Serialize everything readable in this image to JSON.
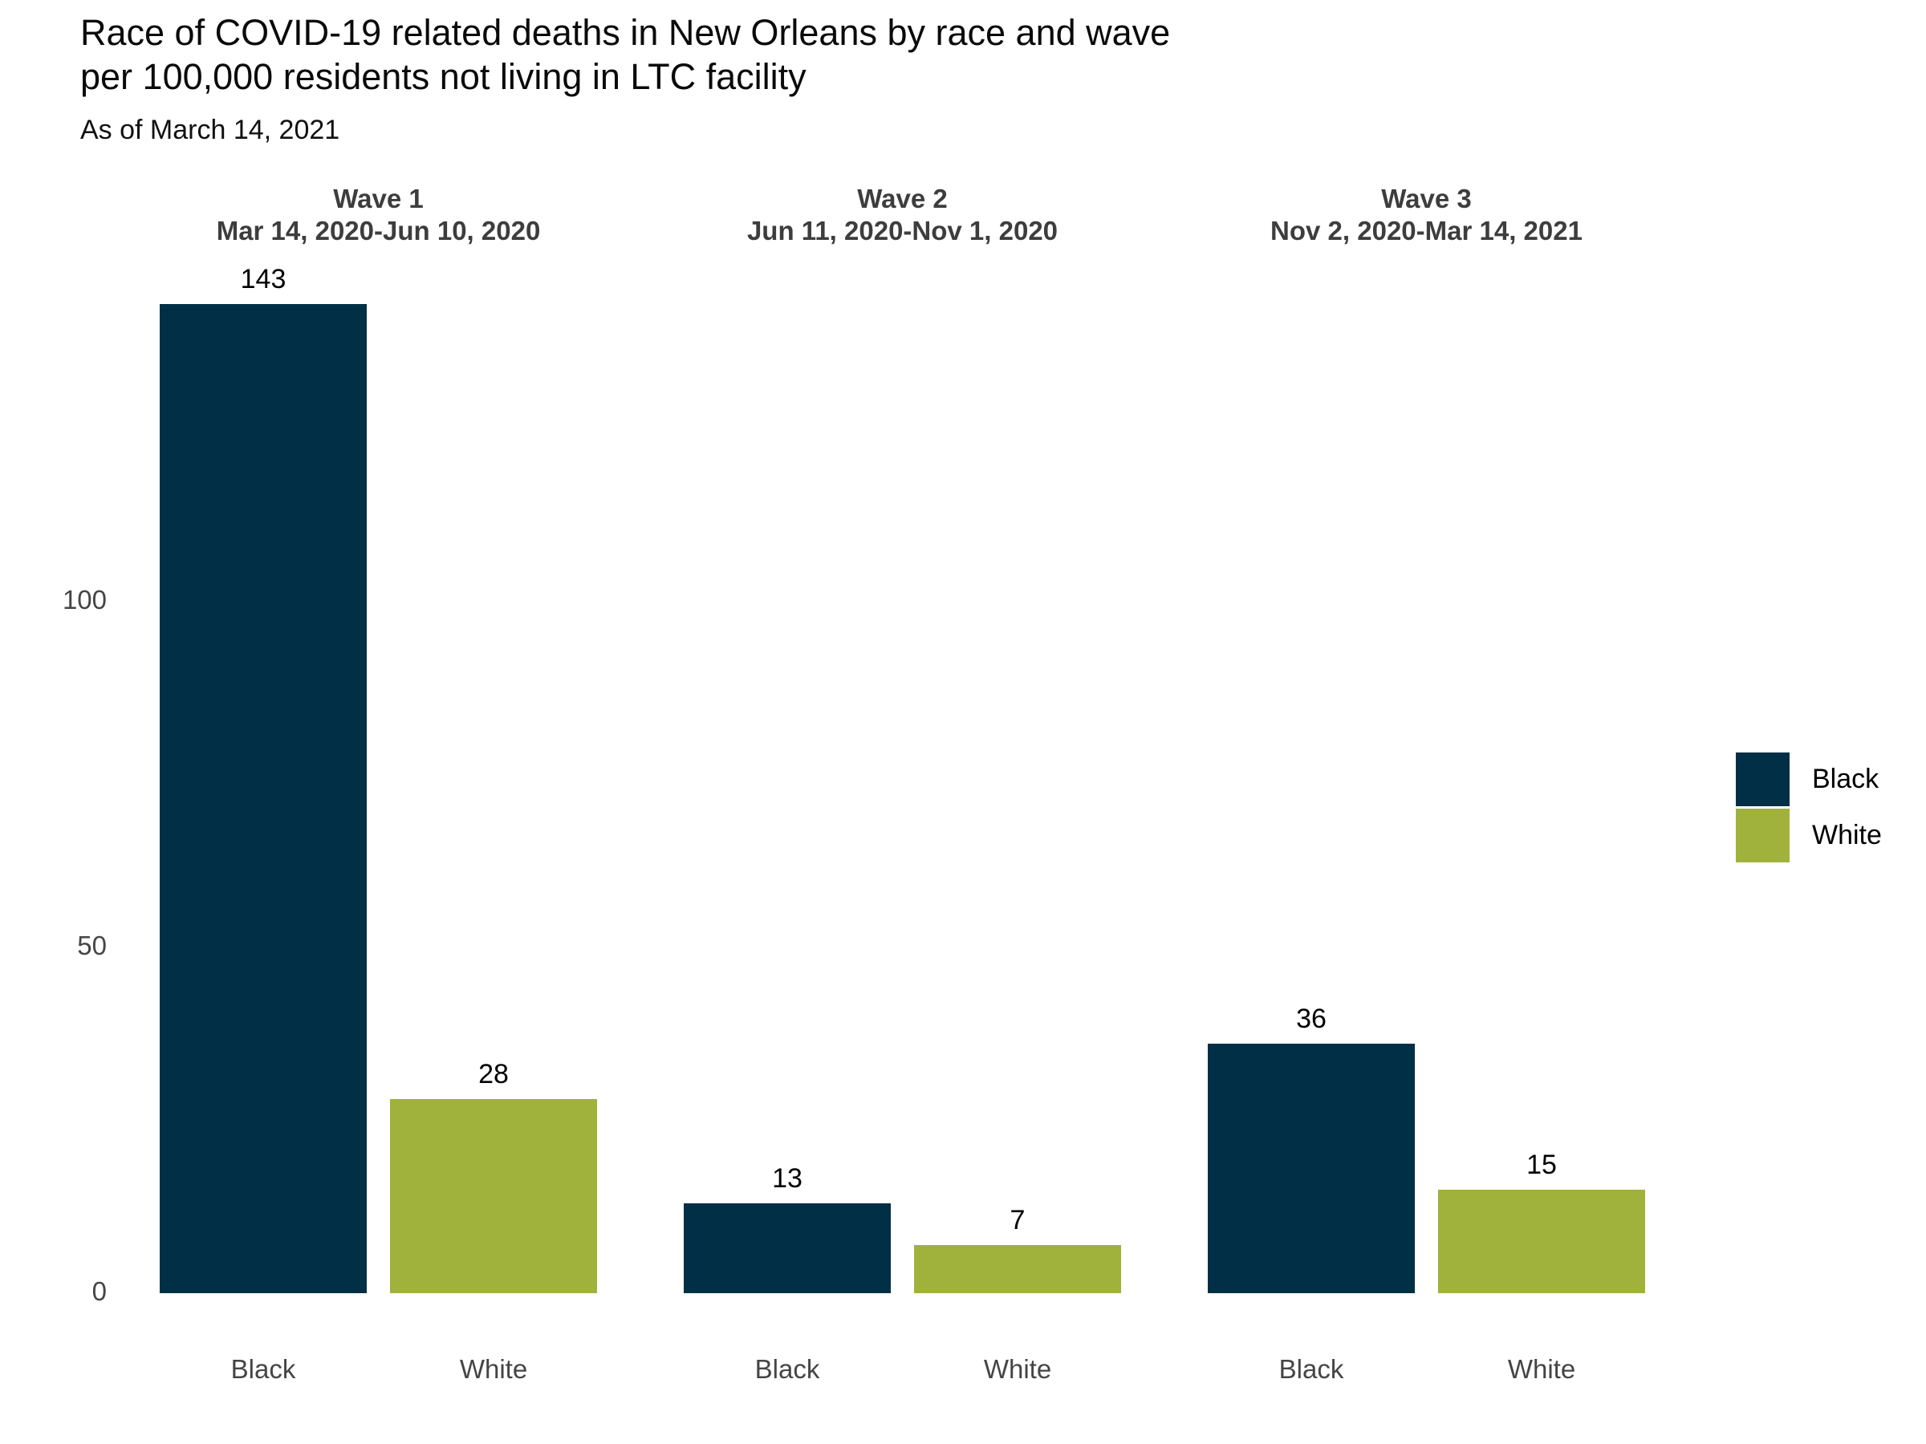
{
  "title": {
    "line1": "Race of COVID-19 related deaths in New Orleans by race and wave",
    "line2": "per 100,000 residents not living in LTC facility"
  },
  "subtitle": "As of March 14, 2021",
  "colors": {
    "black_series": "#012F45",
    "white_series": "#A0B23C",
    "axis_text": "#454545",
    "wave_header_text": "#3D3D3D",
    "value_label_text": "#000000",
    "background": "#FFFFFF"
  },
  "legend": {
    "position": "right",
    "entries": [
      {
        "label": "Black",
        "color": "#012F45"
      },
      {
        "label": "White",
        "color": "#A0B23C"
      }
    ]
  },
  "chart_data": {
    "type": "bar",
    "title": "Race of COVID-19 related deaths in New Orleans by race and wave per 100,000 residents not living in LTC facility",
    "subtitle": "As of March 14, 2021",
    "xlabel": "",
    "ylabel": "",
    "ylim": [
      0,
      150
    ],
    "y_ticks": [
      0,
      50,
      100
    ],
    "grid": false,
    "legend_position": "right",
    "series_names": [
      "Black",
      "White"
    ],
    "panels": [
      {
        "wave": "Wave 1",
        "date_range": "Mar 14, 2020-Jun 10, 2020",
        "categories": [
          "Black",
          "White"
        ],
        "values": [
          143,
          28
        ]
      },
      {
        "wave": "Wave 2",
        "date_range": "Jun 11, 2020-Nov 1, 2020",
        "categories": [
          "Black",
          "White"
        ],
        "values": [
          13,
          7
        ]
      },
      {
        "wave": "Wave 3",
        "date_range": "Nov 2, 2020-Mar 14, 2021",
        "categories": [
          "Black",
          "White"
        ],
        "values": [
          36,
          15
        ]
      }
    ]
  }
}
